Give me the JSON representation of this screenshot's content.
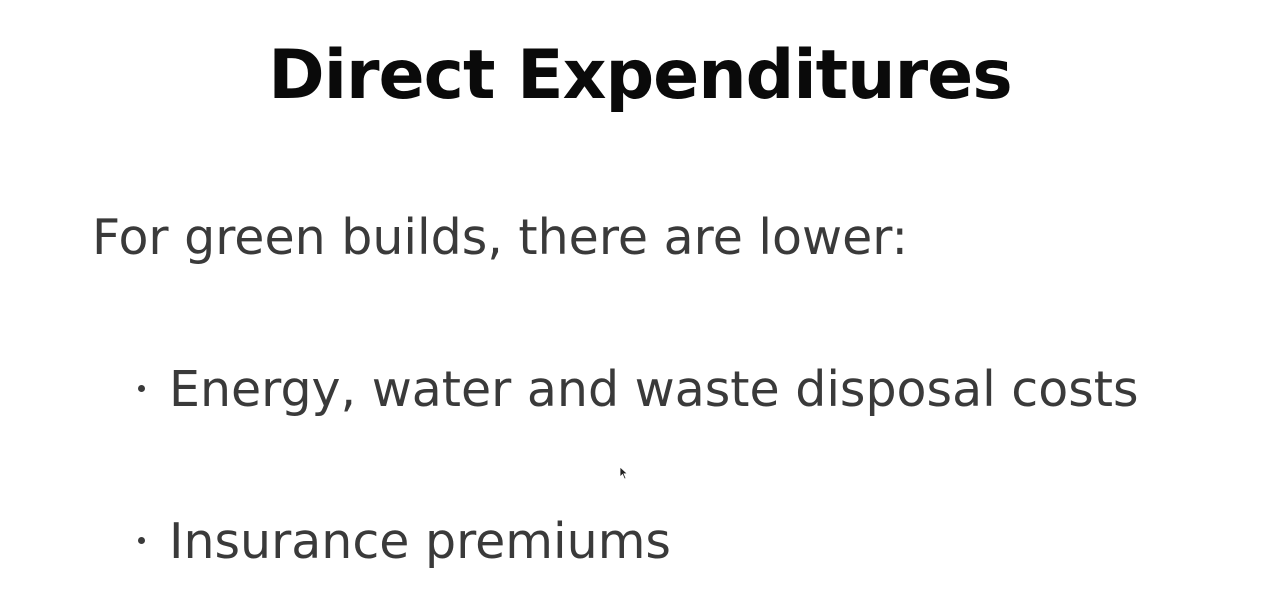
{
  "slide": {
    "title": "Direct Expenditures",
    "intro": "For green builds, there are lower:",
    "bullets": [
      {
        "label": "Energy, water and waste disposal costs"
      },
      {
        "label": "Insurance premiums"
      }
    ]
  },
  "cursor": {
    "icon": "mouse-pointer-icon"
  }
}
